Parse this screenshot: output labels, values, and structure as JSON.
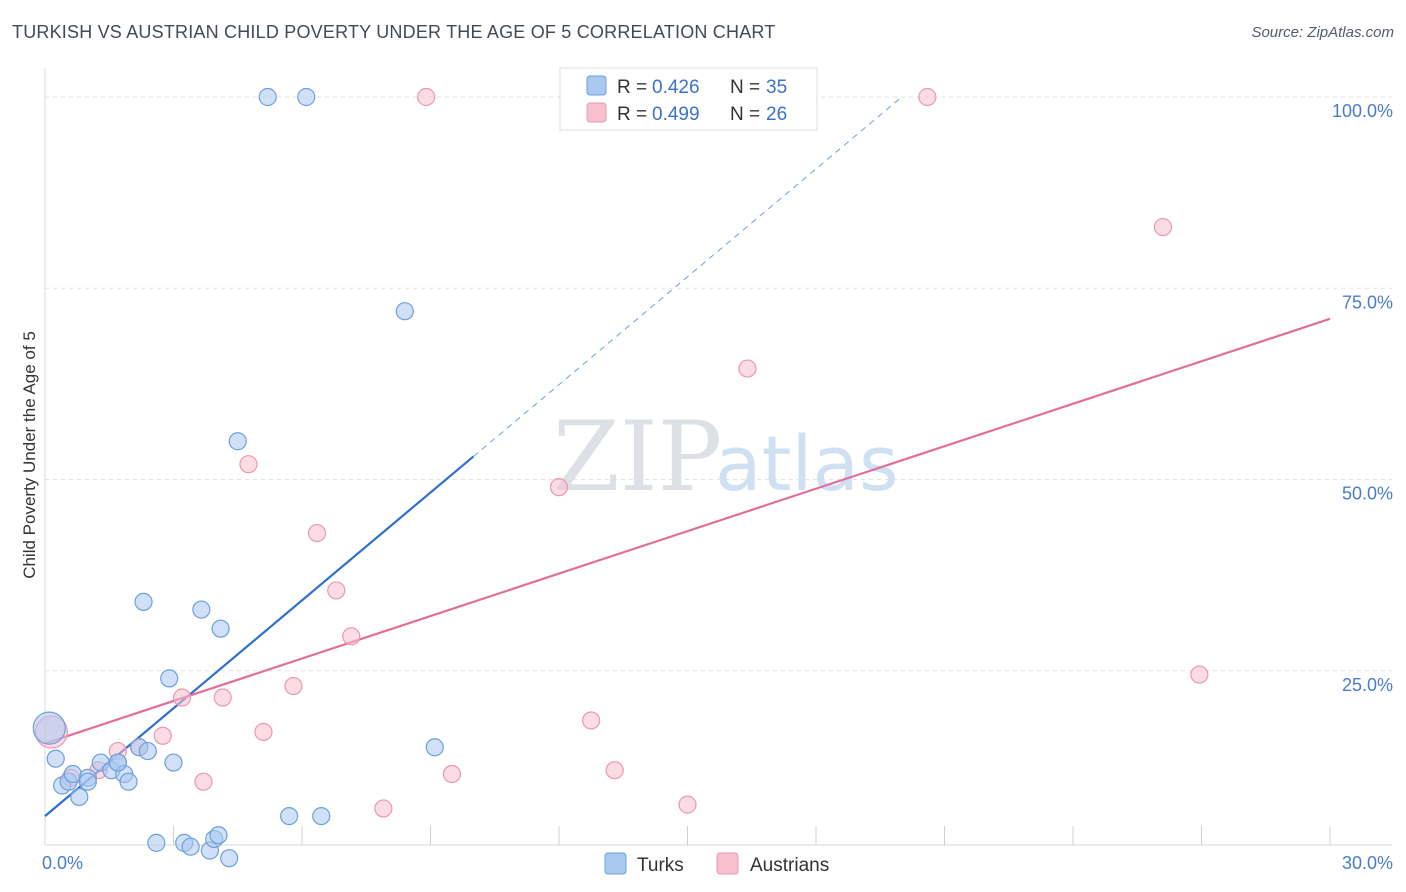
{
  "header": {
    "title": "TURKISH VS AUSTRIAN CHILD POVERTY UNDER THE AGE OF 5 CORRELATION CHART",
    "source": "Source: ZipAtlas.com"
  },
  "watermark": {
    "zip": "ZIP",
    "atlas": "atlas"
  },
  "chart_data": {
    "type": "scatter",
    "title": "TURKISH VS AUSTRIAN CHILD POVERTY UNDER THE AGE OF 5 CORRELATION CHART",
    "xlabel": "",
    "ylabel": "Child Poverty Under the Age of 5",
    "xlim": [
      0,
      30
    ],
    "ylim": [
      0,
      100
    ],
    "x_ticks": [
      {
        "value": 0,
        "label": "0.0%"
      },
      {
        "value": 30,
        "label": "30.0%"
      }
    ],
    "y_ticks": [
      {
        "value": 25,
        "label": "25.0%"
      },
      {
        "value": 50,
        "label": "50.0%"
      },
      {
        "value": 75,
        "label": "75.0%"
      },
      {
        "value": 100,
        "label": "100.0%"
      }
    ],
    "grid": true,
    "legend_position": "top-center",
    "colors": {
      "turks_fill": "#a9c8f0",
      "turks_stroke": "#6e9fdc",
      "turks_line": "#2f6fd0",
      "austrians_fill": "#f7bfcf",
      "austrians_stroke": "#ea98b2",
      "austrians_line": "#e26e98"
    },
    "series": [
      {
        "name": "Turks",
        "r_label": "R =",
        "r_value": "0.426",
        "n_label": "N =",
        "n_value": "35",
        "points": [
          {
            "x": 0.1,
            "y": 17.5,
            "big": true
          },
          {
            "x": 0.25,
            "y": 13.5
          },
          {
            "x": 0.4,
            "y": 10.0
          },
          {
            "x": 0.55,
            "y": 10.5
          },
          {
            "x": 0.65,
            "y": 11.5
          },
          {
            "x": 0.8,
            "y": 8.5
          },
          {
            "x": 1.0,
            "y": 11.0
          },
          {
            "x": 1.0,
            "y": 10.5
          },
          {
            "x": 1.3,
            "y": 13.0
          },
          {
            "x": 1.55,
            "y": 12.0
          },
          {
            "x": 1.7,
            "y": 13.0
          },
          {
            "x": 1.85,
            "y": 11.5
          },
          {
            "x": 1.95,
            "y": 10.5
          },
          {
            "x": 1.7,
            "y": 13.0
          },
          {
            "x": 2.2,
            "y": 15.0
          },
          {
            "x": 2.3,
            "y": 34.0
          },
          {
            "x": 2.4,
            "y": 14.5
          },
          {
            "x": 2.6,
            "y": 2.5
          },
          {
            "x": 2.9,
            "y": 24.0
          },
          {
            "x": 3.0,
            "y": 13.0
          },
          {
            "x": 3.25,
            "y": 2.5
          },
          {
            "x": 3.4,
            "y": 2.0
          },
          {
            "x": 3.65,
            "y": 33.0
          },
          {
            "x": 3.85,
            "y": 1.5
          },
          {
            "x": 3.95,
            "y": 3.0
          },
          {
            "x": 4.1,
            "y": 30.5
          },
          {
            "x": 4.05,
            "y": 3.5
          },
          {
            "x": 4.3,
            "y": 0.5
          },
          {
            "x": 4.5,
            "y": 55.0
          },
          {
            "x": 5.2,
            "y": 100.0
          },
          {
            "x": 5.7,
            "y": 6.0
          },
          {
            "x": 6.1,
            "y": 100.0
          },
          {
            "x": 6.45,
            "y": 6.0
          },
          {
            "x": 8.4,
            "y": 72.0
          },
          {
            "x": 9.1,
            "y": 15.0
          }
        ],
        "trend": {
          "x1": 0,
          "y1": 6.0,
          "x2": 10.0,
          "y2": 53.0
        },
        "trend_extension": {
          "x1": 10.0,
          "y1": 53.0,
          "x2": 20.0,
          "y2": 100.0
        }
      },
      {
        "name": "Austrians",
        "r_label": "R =",
        "r_value": "0.499",
        "n_label": "N =",
        "n_value": "26",
        "points": [
          {
            "x": 0.15,
            "y": 17.0,
            "big": true
          },
          {
            "x": 0.6,
            "y": 11.0
          },
          {
            "x": 1.25,
            "y": 12.0
          },
          {
            "x": 1.7,
            "y": 14.5
          },
          {
            "x": 2.2,
            "y": 15.0
          },
          {
            "x": 2.75,
            "y": 16.5
          },
          {
            "x": 3.2,
            "y": 21.5
          },
          {
            "x": 3.7,
            "y": 10.5
          },
          {
            "x": 4.15,
            "y": 21.5
          },
          {
            "x": 4.75,
            "y": 52.0
          },
          {
            "x": 5.1,
            "y": 17.0
          },
          {
            "x": 5.8,
            "y": 23.0
          },
          {
            "x": 6.35,
            "y": 43.0
          },
          {
            "x": 6.8,
            "y": 35.5
          },
          {
            "x": 7.15,
            "y": 29.5
          },
          {
            "x": 7.9,
            "y": 7.0
          },
          {
            "x": 8.9,
            "y": 100.0
          },
          {
            "x": 9.5,
            "y": 11.5
          },
          {
            "x": 12.0,
            "y": 49.0
          },
          {
            "x": 12.75,
            "y": 18.5
          },
          {
            "x": 13.3,
            "y": 12.0
          },
          {
            "x": 15.0,
            "y": 7.5
          },
          {
            "x": 16.4,
            "y": 64.5
          },
          {
            "x": 20.6,
            "y": 100.0
          },
          {
            "x": 26.1,
            "y": 83.0
          },
          {
            "x": 26.95,
            "y": 24.5
          }
        ],
        "trend": {
          "x1": 0,
          "y1": 15.5,
          "x2": 30.0,
          "y2": 71.0
        }
      }
    ]
  }
}
